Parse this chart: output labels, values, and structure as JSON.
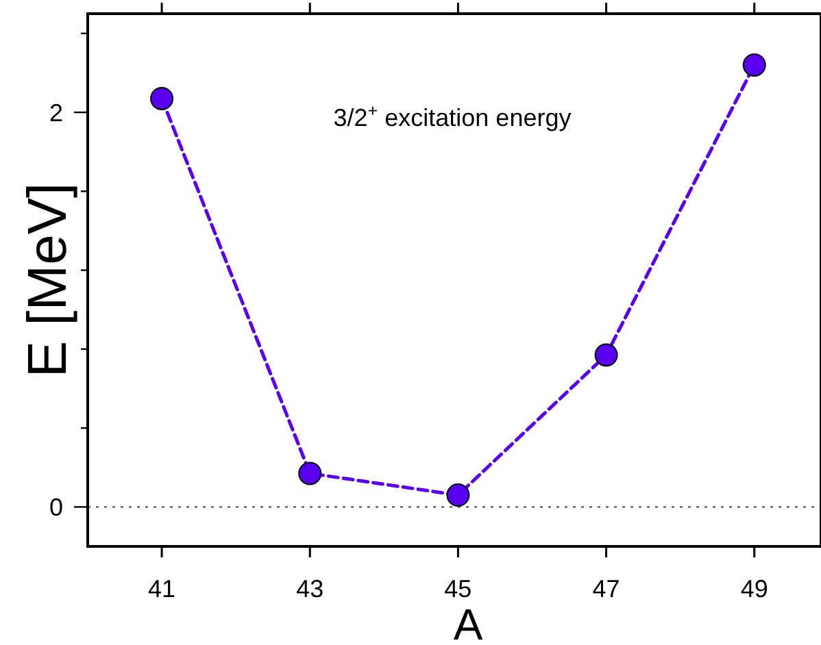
{
  "chart_data": {
    "type": "line",
    "xlabel": "A",
    "ylabel": "E [MeV]",
    "annotations": [
      "3/2$^{+}$ excitation energy"
    ],
    "x": [
      41,
      43,
      45,
      47,
      49
    ],
    "series": [
      {
        "color": "#5a00f0",
        "values": [
          2.07,
          0.17,
          0.06,
          0.77,
          2.24
        ]
      }
    ],
    "marker": "circle",
    "line_style": "dashed",
    "xlim": [
      40,
      49.9
    ],
    "xticks": [
      41,
      43,
      45,
      47,
      49
    ],
    "ylim": [
      -0.2,
      2.5
    ],
    "yticks": [
      0,
      {
        "value": 0.4,
        "label": null
      },
      {
        "value": 0.8,
        "label": null
      },
      {
        "value": 1.2,
        "label": null
      },
      {
        "value": 1.6,
        "label": null
      },
      2,
      {
        "value": 2.4,
        "label": null
      }
    ],
    "ref_lines": [
      {
        "axis": "y",
        "value": 0,
        "line_style": "dotted",
        "color": "#555555"
      }
    ],
    "grid": false
  }
}
